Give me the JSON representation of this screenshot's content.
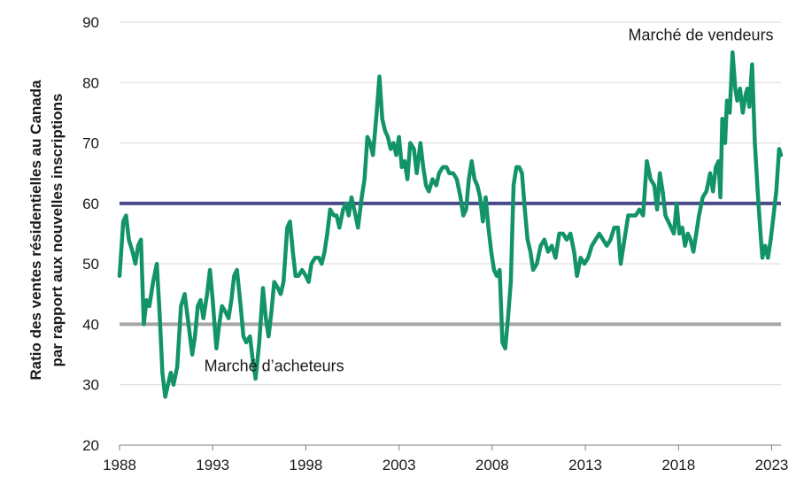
{
  "chart_data": {
    "type": "line",
    "ylabel_line1": "Ratio des ventes résidentielles au Canada",
    "ylabel_line2": "par rapport aux nouvelles inscriptions",
    "xlabel": "",
    "xlim": [
      1988,
      2023.5
    ],
    "ylim": [
      20,
      90
    ],
    "grid": true,
    "x_ticks": [
      1988,
      1993,
      1998,
      2003,
      2008,
      2013,
      2018,
      2023
    ],
    "y_ticks": [
      20,
      30,
      40,
      50,
      60,
      70,
      80,
      90
    ],
    "reference_lines": [
      {
        "y": 60,
        "color": "#4a4a8c"
      },
      {
        "y": 40,
        "color": "#a6a6a6"
      }
    ],
    "annotations": [
      {
        "text": "Marché de vendeurs",
        "x": 2019.2,
        "y": 87
      },
      {
        "text": "Marché d’acheteurs",
        "x": 1996.3,
        "y": 32.2
      }
    ],
    "series": [
      {
        "color": "#12936a",
        "points": [
          [
            1988.0,
            48
          ],
          [
            1988.2,
            57
          ],
          [
            1988.35,
            58
          ],
          [
            1988.5,
            54
          ],
          [
            1988.7,
            52
          ],
          [
            1988.85,
            50
          ],
          [
            1989.0,
            53
          ],
          [
            1989.15,
            54
          ],
          [
            1989.3,
            40
          ],
          [
            1989.45,
            44
          ],
          [
            1989.6,
            43
          ],
          [
            1989.8,
            47
          ],
          [
            1990.0,
            50
          ],
          [
            1990.15,
            42
          ],
          [
            1990.3,
            32
          ],
          [
            1990.45,
            28
          ],
          [
            1990.6,
            30
          ],
          [
            1990.75,
            32
          ],
          [
            1990.9,
            30
          ],
          [
            1991.1,
            33
          ],
          [
            1991.3,
            43
          ],
          [
            1991.5,
            45
          ],
          [
            1991.7,
            40
          ],
          [
            1991.9,
            35
          ],
          [
            1992.05,
            38
          ],
          [
            1992.2,
            43
          ],
          [
            1992.35,
            44
          ],
          [
            1992.5,
            41
          ],
          [
            1992.7,
            45
          ],
          [
            1992.85,
            49
          ],
          [
            1993.0,
            44
          ],
          [
            1993.2,
            36
          ],
          [
            1993.35,
            40
          ],
          [
            1993.5,
            43
          ],
          [
            1993.7,
            42
          ],
          [
            1993.85,
            41
          ],
          [
            1994.0,
            44
          ],
          [
            1994.15,
            48
          ],
          [
            1994.3,
            49
          ],
          [
            1994.5,
            43
          ],
          [
            1994.65,
            38
          ],
          [
            1994.8,
            37
          ],
          [
            1995.0,
            38
          ],
          [
            1995.15,
            34
          ],
          [
            1995.3,
            31
          ],
          [
            1995.5,
            37
          ],
          [
            1995.7,
            46
          ],
          [
            1995.85,
            41
          ],
          [
            1996.0,
            38
          ],
          [
            1996.15,
            42
          ],
          [
            1996.3,
            47
          ],
          [
            1996.5,
            46
          ],
          [
            1996.65,
            45
          ],
          [
            1996.8,
            47
          ],
          [
            1997.0,
            56
          ],
          [
            1997.15,
            57
          ],
          [
            1997.3,
            52
          ],
          [
            1997.45,
            48
          ],
          [
            1997.6,
            48
          ],
          [
            1997.8,
            49
          ],
          [
            1998.0,
            48
          ],
          [
            1998.15,
            47
          ],
          [
            1998.3,
            50
          ],
          [
            1998.5,
            51
          ],
          [
            1998.7,
            51
          ],
          [
            1998.85,
            50
          ],
          [
            1999.0,
            52
          ],
          [
            1999.15,
            55
          ],
          [
            1999.3,
            59
          ],
          [
            1999.5,
            58
          ],
          [
            1999.65,
            58
          ],
          [
            1999.8,
            56
          ],
          [
            2000.0,
            59
          ],
          [
            2000.15,
            60
          ],
          [
            2000.3,
            58
          ],
          [
            2000.45,
            61
          ],
          [
            2000.6,
            59
          ],
          [
            2000.8,
            56
          ],
          [
            2001.0,
            61
          ],
          [
            2001.15,
            64
          ],
          [
            2001.3,
            71
          ],
          [
            2001.45,
            70
          ],
          [
            2001.6,
            68
          ],
          [
            2001.8,
            75
          ],
          [
            2001.95,
            81
          ],
          [
            2002.1,
            74
          ],
          [
            2002.25,
            72
          ],
          [
            2002.4,
            71
          ],
          [
            2002.55,
            69
          ],
          [
            2002.7,
            70
          ],
          [
            2002.85,
            68
          ],
          [
            2003.0,
            71
          ],
          [
            2003.15,
            66
          ],
          [
            2003.3,
            67
          ],
          [
            2003.45,
            64
          ],
          [
            2003.6,
            70
          ],
          [
            2003.8,
            69
          ],
          [
            2003.95,
            65
          ],
          [
            2004.15,
            70
          ],
          [
            2004.3,
            66
          ],
          [
            2004.45,
            63
          ],
          [
            2004.6,
            62
          ],
          [
            2004.8,
            64
          ],
          [
            2005.0,
            63
          ],
          [
            2005.15,
            65
          ],
          [
            2005.35,
            66
          ],
          [
            2005.55,
            66
          ],
          [
            2005.7,
            65
          ],
          [
            2005.9,
            65
          ],
          [
            2006.1,
            64
          ],
          [
            2006.3,
            61
          ],
          [
            2006.45,
            58
          ],
          [
            2006.6,
            59
          ],
          [
            2006.75,
            64
          ],
          [
            2006.9,
            67
          ],
          [
            2007.05,
            64
          ],
          [
            2007.2,
            63
          ],
          [
            2007.35,
            61
          ],
          [
            2007.5,
            57
          ],
          [
            2007.65,
            61
          ],
          [
            2007.8,
            56
          ],
          [
            2007.95,
            52
          ],
          [
            2008.1,
            49
          ],
          [
            2008.25,
            48
          ],
          [
            2008.4,
            49
          ],
          [
            2008.55,
            37
          ],
          [
            2008.7,
            36
          ],
          [
            2008.85,
            41
          ],
          [
            2009.0,
            47
          ],
          [
            2009.15,
            63
          ],
          [
            2009.3,
            66
          ],
          [
            2009.45,
            66
          ],
          [
            2009.6,
            65
          ],
          [
            2009.75,
            59
          ],
          [
            2009.9,
            54
          ],
          [
            2010.05,
            52
          ],
          [
            2010.2,
            49
          ],
          [
            2010.4,
            50
          ],
          [
            2010.6,
            53
          ],
          [
            2010.8,
            54
          ],
          [
            2011.0,
            52
          ],
          [
            2011.2,
            53
          ],
          [
            2011.4,
            51
          ],
          [
            2011.6,
            55
          ],
          [
            2011.8,
            55
          ],
          [
            2012.0,
            54
          ],
          [
            2012.2,
            55
          ],
          [
            2012.4,
            52
          ],
          [
            2012.55,
            48
          ],
          [
            2012.75,
            51
          ],
          [
            2012.95,
            50
          ],
          [
            2013.15,
            51
          ],
          [
            2013.35,
            53
          ],
          [
            2013.55,
            54
          ],
          [
            2013.75,
            55
          ],
          [
            2013.95,
            54
          ],
          [
            2014.15,
            53
          ],
          [
            2014.35,
            54
          ],
          [
            2014.55,
            56
          ],
          [
            2014.75,
            56
          ],
          [
            2014.9,
            50
          ],
          [
            2015.1,
            54
          ],
          [
            2015.3,
            58
          ],
          [
            2015.5,
            58
          ],
          [
            2015.7,
            58
          ],
          [
            2015.9,
            59
          ],
          [
            2016.1,
            58
          ],
          [
            2016.3,
            67
          ],
          [
            2016.5,
            64
          ],
          [
            2016.7,
            63
          ],
          [
            2016.85,
            59
          ],
          [
            2017.0,
            65
          ],
          [
            2017.15,
            62
          ],
          [
            2017.3,
            58
          ],
          [
            2017.45,
            57
          ],
          [
            2017.6,
            56
          ],
          [
            2017.75,
            55
          ],
          [
            2017.9,
            60
          ],
          [
            2018.05,
            55
          ],
          [
            2018.2,
            56
          ],
          [
            2018.35,
            53
          ],
          [
            2018.5,
            55
          ],
          [
            2018.65,
            54
          ],
          [
            2018.8,
            52
          ],
          [
            2018.95,
            55
          ],
          [
            2019.1,
            58
          ],
          [
            2019.3,
            61
          ],
          [
            2019.5,
            62
          ],
          [
            2019.7,
            65
          ],
          [
            2019.85,
            62
          ],
          [
            2020.0,
            66
          ],
          [
            2020.15,
            67
          ],
          [
            2020.25,
            61
          ],
          [
            2020.35,
            74
          ],
          [
            2020.5,
            70
          ],
          [
            2020.6,
            77
          ],
          [
            2020.75,
            75
          ],
          [
            2020.9,
            85
          ],
          [
            2021.05,
            79
          ],
          [
            2021.15,
            77
          ],
          [
            2021.3,
            79
          ],
          [
            2021.45,
            75
          ],
          [
            2021.6,
            78
          ],
          [
            2021.7,
            79
          ],
          [
            2021.8,
            76
          ],
          [
            2021.95,
            83
          ],
          [
            2022.1,
            70
          ],
          [
            2022.25,
            62
          ],
          [
            2022.4,
            55
          ],
          [
            2022.5,
            51
          ],
          [
            2022.65,
            53
          ],
          [
            2022.8,
            51
          ],
          [
            2022.95,
            54
          ],
          [
            2023.1,
            58
          ],
          [
            2023.25,
            62
          ],
          [
            2023.4,
            69
          ],
          [
            2023.5,
            68
          ]
        ]
      }
    ]
  }
}
